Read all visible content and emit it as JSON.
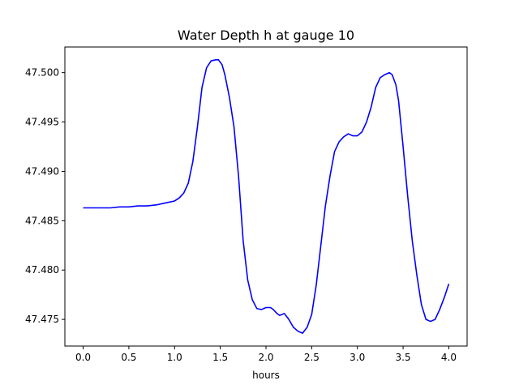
{
  "chart_data": {
    "type": "line",
    "title": "Water Depth h at gauge 10",
    "xlabel": "hours",
    "ylabel": "",
    "xlim": [
      -0.2,
      4.2
    ],
    "ylim": [
      47.4723,
      47.5026
    ],
    "xticks": [
      0.0,
      0.5,
      1.0,
      1.5,
      2.0,
      2.5,
      3.0,
      3.5,
      4.0
    ],
    "xtick_labels": [
      "0.0",
      "0.5",
      "1.0",
      "1.5",
      "2.0",
      "2.5",
      "3.0",
      "3.5",
      "4.0"
    ],
    "yticks": [
      47.475,
      47.48,
      47.485,
      47.49,
      47.495,
      47.5
    ],
    "ytick_labels": [
      "47.475",
      "47.480",
      "47.485",
      "47.490",
      "47.495",
      "47.500"
    ],
    "grid": false,
    "series": [
      {
        "color": "#0000ff",
        "x": [
          0.0,
          0.1,
          0.2,
          0.3,
          0.4,
          0.5,
          0.6,
          0.7,
          0.8,
          0.9,
          1.0,
          1.05,
          1.1,
          1.15,
          1.2,
          1.25,
          1.3,
          1.35,
          1.4,
          1.45,
          1.48,
          1.52,
          1.55,
          1.6,
          1.65,
          1.7,
          1.75,
          1.8,
          1.85,
          1.9,
          1.95,
          2.0,
          2.05,
          2.08,
          2.12,
          2.15,
          2.2,
          2.25,
          2.3,
          2.35,
          2.4,
          2.45,
          2.5,
          2.55,
          2.6,
          2.65,
          2.7,
          2.75,
          2.8,
          2.85,
          2.9,
          2.95,
          3.0,
          3.05,
          3.1,
          3.15,
          3.2,
          3.25,
          3.3,
          3.35,
          3.38,
          3.42,
          3.45,
          3.5,
          3.55,
          3.6,
          3.65,
          3.7,
          3.75,
          3.8,
          3.85,
          3.9,
          3.95,
          4.0
        ],
        "y": [
          47.4863,
          47.4863,
          47.4863,
          47.4863,
          47.4864,
          47.4864,
          47.4865,
          47.4865,
          47.4866,
          47.4868,
          47.487,
          47.4873,
          47.4878,
          47.4888,
          47.491,
          47.4945,
          47.4985,
          47.5005,
          47.5012,
          47.5013,
          47.5013,
          47.5008,
          47.4998,
          47.4975,
          47.4945,
          47.4895,
          47.483,
          47.479,
          47.477,
          47.4761,
          47.476,
          47.4762,
          47.4762,
          47.476,
          47.4756,
          47.4754,
          47.4756,
          47.475,
          47.4742,
          47.4738,
          47.4736,
          47.4742,
          47.4755,
          47.4785,
          47.4825,
          47.4865,
          47.4895,
          47.492,
          47.493,
          47.4935,
          47.4938,
          47.4936,
          47.4936,
          47.494,
          47.495,
          47.4965,
          47.4985,
          47.4995,
          47.4998,
          47.5,
          47.4998,
          47.4988,
          47.4972,
          47.4925,
          47.4875,
          47.483,
          47.4795,
          47.4765,
          47.475,
          47.4748,
          47.475,
          47.476,
          47.4772,
          47.4786
        ]
      }
    ]
  }
}
